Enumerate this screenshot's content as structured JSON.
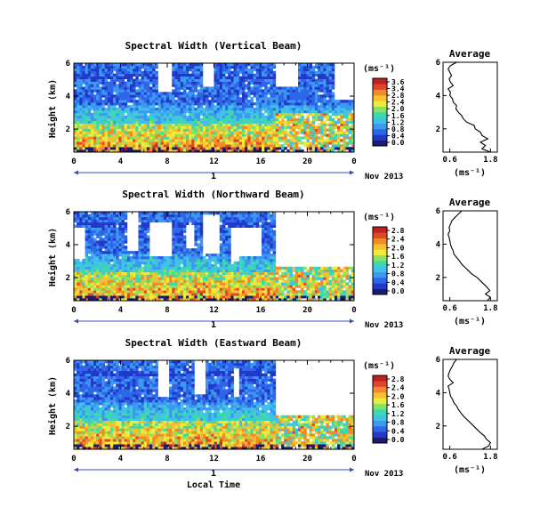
{
  "colors": {
    "scale": [
      "#1a1a70",
      "#2238c8",
      "#2e66ea",
      "#3c98f0",
      "#40c2e8",
      "#3ed8b0",
      "#8ee060",
      "#ecec3a",
      "#f6c030",
      "#f28a2a",
      "#e2462a",
      "#c02020"
    ],
    "axis": "#000000",
    "time_line": "#3c48c8",
    "missing": "#ffffff"
  },
  "colorbar": {
    "unit": "(ms⁻¹)",
    "ticks": [
      "3.6",
      "3.4",
      "2.8",
      "2.4",
      "2.0",
      "1.6",
      "1.2",
      "0.8",
      "0.4",
      "0.0"
    ]
  },
  "chart_data": [
    {
      "type": "heatmap",
      "title": "Spectral Width (Vertical Beam)",
      "ylabel": "Height (km)",
      "xlim": [
        0,
        24
      ],
      "ylim": [
        0.6,
        6
      ],
      "xticks": [
        "0",
        "4",
        "8",
        "12",
        "16",
        "20",
        "0"
      ],
      "yticks": [
        "6",
        "4",
        "2"
      ],
      "colorbar_ticks": [
        "3.6",
        "3.4",
        "2.8",
        "2.4",
        "2.0",
        "1.6",
        "1.2",
        "0.8",
        "0.4",
        "0.0"
      ],
      "day_label": "1",
      "date_label": "Nov 2013",
      "seed": 17,
      "missing_regions": [
        [
          7.2,
          8.3,
          4.3,
          6.0
        ],
        [
          11.1,
          11.9,
          4.6,
          6.0
        ],
        [
          17.3,
          19.2,
          4.5,
          6.0
        ],
        [
          22.4,
          24.0,
          3.8,
          6.0
        ]
      ],
      "average": {
        "title": "Average",
        "xlabel": "(ms⁻¹)",
        "xticks": [
          "0.6",
          "1.8"
        ],
        "yticks": [
          "6",
          "4",
          "2"
        ],
        "height_km": [
          0.6,
          0.8,
          1.0,
          1.2,
          1.4,
          1.6,
          1.8,
          2.0,
          2.2,
          2.4,
          2.6,
          2.8,
          3.0,
          3.2,
          3.4,
          3.6,
          3.8,
          4.0,
          4.2,
          4.4,
          4.6,
          4.8,
          5.0,
          5.2,
          5.4,
          5.6,
          5.8,
          6.0
        ],
        "width_ms": [
          1.8,
          1.55,
          1.65,
          1.5,
          1.72,
          1.55,
          1.5,
          1.35,
          1.32,
          1.1,
          1.0,
          0.95,
          0.85,
          0.78,
          0.8,
          0.7,
          0.68,
          0.6,
          0.62,
          0.55,
          0.7,
          0.62,
          0.58,
          0.65,
          0.6,
          0.55,
          0.62,
          0.8
        ]
      }
    },
    {
      "type": "heatmap",
      "title": "Spectral Width (Northward Beam)",
      "ylabel": "Height (km)",
      "xlim": [
        0,
        24
      ],
      "ylim": [
        0.6,
        6
      ],
      "xticks": [
        "0",
        "4",
        "8",
        "12",
        "16",
        "20",
        "0"
      ],
      "yticks": [
        "6",
        "4",
        "2"
      ],
      "colorbar_ticks": [
        "2.8",
        "2.4",
        "2.0",
        "1.6",
        "1.2",
        "0.8",
        "0.4",
        "0.0"
      ],
      "day_label": "1",
      "date_label": "Nov 2013",
      "seed": 53,
      "missing_regions": [
        [
          0.0,
          1.0,
          3.2,
          5.0
        ],
        [
          4.5,
          5.5,
          3.6,
          6.0
        ],
        [
          6.5,
          8.3,
          3.3,
          5.3
        ],
        [
          9.6,
          10.4,
          3.8,
          5.2
        ],
        [
          11.0,
          12.5,
          3.5,
          5.8
        ],
        [
          13.4,
          16.1,
          3.3,
          5.0
        ],
        [
          13.4,
          14.2,
          3.0,
          3.5
        ],
        [
          17.3,
          24.0,
          2.7,
          6.0
        ],
        [
          21.4,
          22.7,
          3.0,
          6.0
        ]
      ],
      "average": {
        "title": "Average",
        "xlabel": "(ms⁻¹)",
        "xticks": [
          "0.6",
          "1.8"
        ],
        "yticks": [
          "6",
          "4",
          "2"
        ],
        "height_km": [
          0.6,
          0.8,
          1.0,
          1.2,
          1.4,
          1.6,
          1.8,
          2.0,
          2.2,
          2.4,
          2.6,
          2.8,
          3.0,
          3.2,
          3.4,
          3.6,
          3.8,
          4.0,
          4.2,
          4.4,
          4.6,
          4.8,
          5.0,
          5.2,
          5.4,
          5.6,
          5.8,
          6.0
        ],
        "width_ms": [
          1.7,
          1.8,
          1.65,
          1.78,
          1.7,
          1.6,
          1.5,
          1.4,
          1.25,
          1.15,
          1.05,
          0.95,
          0.88,
          0.8,
          0.72,
          0.7,
          0.65,
          0.62,
          0.6,
          0.58,
          0.55,
          0.6,
          0.58,
          0.62,
          0.66,
          0.75,
          0.85,
          0.95
        ]
      }
    },
    {
      "type": "heatmap",
      "title": "Spectral Width (Eastward Beam)",
      "ylabel": "Height (km)",
      "xlim": [
        0,
        24
      ],
      "ylim": [
        0.6,
        6
      ],
      "xticks": [
        "0",
        "4",
        "8",
        "12",
        "16",
        "20",
        "0"
      ],
      "yticks": [
        "6",
        "4",
        "2"
      ],
      "colorbar_ticks": [
        "2.8",
        "2.4",
        "2.0",
        "1.6",
        "1.2",
        "0.8",
        "0.4",
        "0.0"
      ],
      "day_label": "1",
      "date_label": "Nov 2013",
      "seed": 91,
      "missing_regions": [
        [
          7.3,
          8.2,
          3.8,
          6.0
        ],
        [
          10.4,
          11.2,
          4.0,
          6.0
        ],
        [
          13.6,
          14.1,
          3.8,
          5.6
        ],
        [
          17.3,
          24.0,
          2.7,
          6.0
        ],
        [
          21.4,
          22.5,
          3.0,
          6.0
        ]
      ],
      "average": {
        "title": "Average",
        "xlabel": "(ms⁻¹)",
        "xticks": [
          "0.6",
          "1.8"
        ],
        "yticks": [
          "6",
          "4",
          "2"
        ],
        "height_km": [
          0.6,
          0.8,
          1.0,
          1.2,
          1.4,
          1.6,
          1.8,
          2.0,
          2.2,
          2.4,
          2.6,
          2.8,
          3.0,
          3.2,
          3.4,
          3.6,
          3.8,
          4.0,
          4.2,
          4.4,
          4.6,
          4.8,
          5.0,
          5.2,
          5.4,
          5.6,
          5.8,
          6.0
        ],
        "width_ms": [
          1.55,
          1.75,
          1.8,
          1.68,
          1.62,
          1.5,
          1.4,
          1.3,
          1.2,
          1.1,
          1.0,
          0.92,
          0.85,
          0.8,
          0.72,
          0.68,
          0.62,
          0.6,
          0.58,
          0.55,
          0.7,
          0.6,
          0.55,
          0.58,
          0.62,
          0.68,
          0.72,
          0.8
        ]
      }
    }
  ],
  "footer": {
    "xlabel": "Local Time"
  }
}
